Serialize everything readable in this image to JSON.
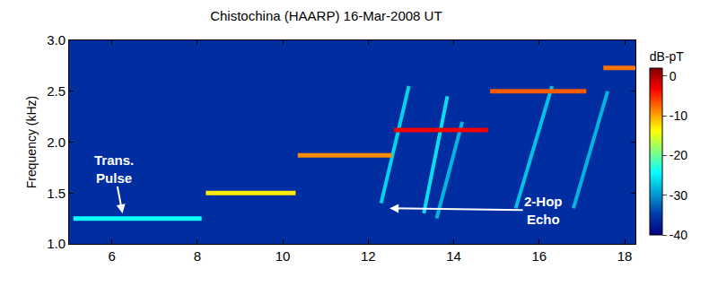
{
  "chart_data": {
    "type": "spectrogram",
    "title": "Chistochina (HAARP) 16-Mar-2008 UT",
    "y_label": "Frequency (kHz)",
    "xlim": [
      5,
      18.25
    ],
    "xticks": [
      6,
      8,
      10,
      12,
      14,
      16,
      18
    ],
    "ylim": [
      1.0,
      3.0
    ],
    "yticks": [
      {
        "value": 1.0,
        "label": "1.0"
      },
      {
        "value": 1.5,
        "label": "1.5"
      },
      {
        "value": 2.0,
        "label": "2.0"
      },
      {
        "value": 2.5,
        "label": "2.5"
      },
      {
        "value": 3.0,
        "label": "3.0"
      }
    ],
    "colorbar": {
      "title": "dB-pT",
      "range": [
        -40,
        2
      ],
      "ticks": [
        -40,
        -30,
        -20,
        -10,
        0
      ]
    },
    "background_level": -36,
    "pulses": [
      {
        "x": [
          5.1,
          8.1
        ],
        "y": 1.25,
        "level": -24
      },
      {
        "x": [
          8.2,
          10.3
        ],
        "y": 1.5,
        "level": -13
      },
      {
        "x": [
          10.35,
          12.55
        ],
        "y": 1.87,
        "level": -9
      },
      {
        "x": [
          12.6,
          14.8
        ],
        "y": 2.12,
        "level": -3
      },
      {
        "x": [
          14.85,
          17.1
        ],
        "y": 2.5,
        "level": -7
      },
      {
        "x": [
          17.5,
          18.25
        ],
        "y": 2.73,
        "level": -8
      }
    ],
    "echoes": [
      {
        "x": [
          12.3,
          12.95
        ],
        "y": [
          1.4,
          2.55
        ],
        "level": -25
      },
      {
        "x": [
          13.3,
          13.85
        ],
        "y": [
          1.3,
          2.45
        ],
        "level": -24
      },
      {
        "x": [
          13.6,
          14.2
        ],
        "y": [
          1.25,
          2.2
        ],
        "level": -27
      },
      {
        "x": [
          15.45,
          16.3
        ],
        "y": [
          1.35,
          2.55
        ],
        "level": -26
      },
      {
        "x": [
          16.8,
          17.6
        ],
        "y": [
          1.35,
          2.5
        ],
        "level": -27
      }
    ],
    "annotations": [
      {
        "lines": [
          "Trans.",
          "Pulse"
        ],
        "text_x": 6.05,
        "text_y": 1.74,
        "x": 6.25,
        "y": 1.3
      },
      {
        "lines": [
          "2-Hop",
          "Echo"
        ],
        "text_x": 16.1,
        "text_y": 1.33,
        "x": 12.5,
        "y": 1.35
      }
    ]
  }
}
